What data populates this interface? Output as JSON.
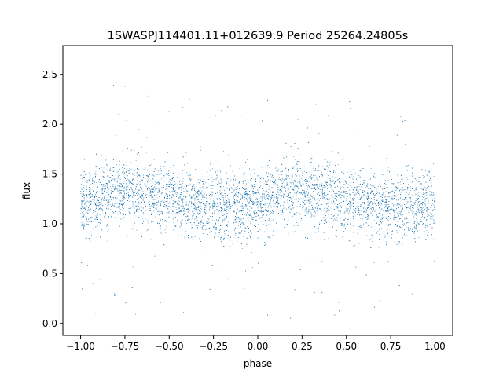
{
  "chart_data": {
    "type": "scatter",
    "title": "1SWASPJ114401.11+012639.9 Period 25264.24805s",
    "xlabel": "phase",
    "ylabel": "flux",
    "xlim": [
      -1.1,
      1.1
    ],
    "ylim": [
      -0.12,
      2.79
    ],
    "xticks": [
      -1.0,
      -0.75,
      -0.5,
      -0.25,
      0.0,
      0.25,
      0.5,
      0.75,
      1.0
    ],
    "xtick_labels": [
      "−1.00",
      "−0.75",
      "−0.50",
      "−0.25",
      "0.00",
      "0.25",
      "0.50",
      "0.75",
      "1.00"
    ],
    "yticks": [
      0.0,
      0.5,
      1.0,
      1.5,
      2.0,
      2.5
    ],
    "ytick_labels": [
      "0.0",
      "0.5",
      "1.0",
      "1.5",
      "2.0",
      "2.5"
    ],
    "grid": false,
    "legend": "none",
    "marker_color": "#1f77b4",
    "series": [
      {
        "x_range": [
          -1.0,
          1.0
        ],
        "profile_phase": [
          0.0,
          0.1,
          0.2,
          0.3,
          0.4,
          0.5,
          0.6,
          0.7,
          0.8,
          0.9,
          1.0
        ],
        "profile_median_flux": [
          1.2,
          1.25,
          1.33,
          1.33,
          1.3,
          1.25,
          1.2,
          1.18,
          1.16,
          1.16,
          1.2
        ]
      }
    ]
  }
}
